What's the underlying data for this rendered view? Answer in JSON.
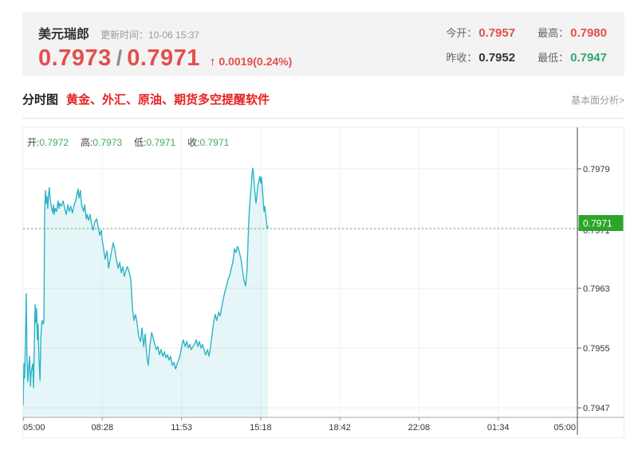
{
  "header": {
    "symbol": "美元瑞郎",
    "update_label": "更新时间：",
    "update_time": "10-06 15:37",
    "bid": "0.7973",
    "slash": "/",
    "ask": "0.7971",
    "arrow": "↑",
    "change": "0.0019(0.24%)",
    "stats": [
      {
        "label": "今开：",
        "value": "0.7957",
        "tone": "red"
      },
      {
        "label": "最高：",
        "value": "0.7980",
        "tone": "red"
      },
      {
        "label": "昨收：",
        "value": "0.7952",
        "tone": "dark"
      },
      {
        "label": "最低：",
        "value": "0.7947",
        "tone": "green"
      }
    ]
  },
  "toolbar": {
    "tab": "分时图",
    "promo": "黄金、外汇、原油、期货多空提醒软件",
    "link": "基本面分析>"
  },
  "colors": {
    "up_red": "#e34f4c",
    "down_green": "#2fa86e",
    "line_teal": "#2eb3c7",
    "area_fill": "rgba(46,179,199,0.12)",
    "dash_green": "#3faf3f",
    "badge_green": "#2ba52b",
    "panel_bg": "#f3f3f3"
  },
  "chart_data": {
    "type": "line",
    "title": "美元瑞郎分时图",
    "legend": [
      {
        "label": "开:",
        "value": "0.7972"
      },
      {
        "label": "高:",
        "value": "0.7973"
      },
      {
        "label": "低:",
        "value": "0.7971"
      },
      {
        "label": "收:",
        "value": "0.7971"
      }
    ],
    "x_ticks": [
      "05:00",
      "08:28",
      "11:53",
      "15:18",
      "18:42",
      "22:08",
      "01:34",
      "05:00"
    ],
    "y_ticks": [
      "0.7979",
      "0.7971",
      "0.7963",
      "0.7955",
      "0.7947"
    ],
    "ylim": [
      0.79457,
      0.79845
    ],
    "x_total_minutes": 1440,
    "grid": true,
    "legend_position": "top-left",
    "current_price": "0.7971",
    "current_price_value": 0.7971,
    "series": [
      {
        "name": "price",
        "points": [
          [
            0,
            0.79473
          ],
          [
            2,
            0.79529
          ],
          [
            4,
            0.7951
          ],
          [
            6,
            0.79561
          ],
          [
            8,
            0.79623
          ],
          [
            10,
            0.79541
          ],
          [
            12,
            0.79505
          ],
          [
            15,
            0.79527
          ],
          [
            17,
            0.79539
          ],
          [
            19,
            0.79499
          ],
          [
            21,
            0.79518
          ],
          [
            25,
            0.79529
          ],
          [
            27,
            0.79497
          ],
          [
            29,
            0.7955
          ],
          [
            31,
            0.79608
          ],
          [
            33,
            0.79584
          ],
          [
            35,
            0.79603
          ],
          [
            37,
            0.79561
          ],
          [
            39,
            0.79582
          ],
          [
            41,
            0.79537
          ],
          [
            44,
            0.79507
          ],
          [
            46,
            0.79561
          ],
          [
            48,
            0.79584
          ],
          [
            50,
            0.79587
          ],
          [
            52,
            0.79582
          ],
          [
            54,
            0.79586
          ],
          [
            56,
            0.79731
          ],
          [
            58,
            0.79761
          ],
          [
            60,
            0.79744
          ],
          [
            62,
            0.79753
          ],
          [
            64,
            0.79737
          ],
          [
            66,
            0.79755
          ],
          [
            68,
            0.79765
          ],
          [
            70,
            0.79751
          ],
          [
            73,
            0.7974
          ],
          [
            77,
            0.79731
          ],
          [
            79,
            0.79742
          ],
          [
            81,
            0.79729
          ],
          [
            83,
            0.79737
          ],
          [
            87,
            0.79733
          ],
          [
            89,
            0.79742
          ],
          [
            91,
            0.79747
          ],
          [
            93,
            0.79737
          ],
          [
            95,
            0.79744
          ],
          [
            99,
            0.7974
          ],
          [
            104,
            0.79747
          ],
          [
            108,
            0.79737
          ],
          [
            112,
            0.79729
          ],
          [
            116,
            0.79742
          ],
          [
            120,
            0.79733
          ],
          [
            124,
            0.7974
          ],
          [
            128,
            0.79731
          ],
          [
            133,
            0.79742
          ],
          [
            137,
            0.79748
          ],
          [
            141,
            0.79759
          ],
          [
            143,
            0.79763
          ],
          [
            145,
            0.79751
          ],
          [
            149,
            0.79761
          ],
          [
            151,
            0.79746
          ],
          [
            153,
            0.7974
          ],
          [
            157,
            0.79733
          ],
          [
            160,
            0.79742
          ],
          [
            162,
            0.79731
          ],
          [
            164,
            0.79723
          ],
          [
            166,
            0.79729
          ],
          [
            170,
            0.79721
          ],
          [
            174,
            0.79729
          ],
          [
            178,
            0.79715
          ],
          [
            182,
            0.79708
          ],
          [
            186,
            0.79719
          ],
          [
            191,
            0.79723
          ],
          [
            195,
            0.79712
          ],
          [
            199,
            0.79701
          ],
          [
            203,
            0.79708
          ],
          [
            205,
            0.79697
          ],
          [
            209,
            0.79683
          ],
          [
            213,
            0.79669
          ],
          [
            218,
            0.7968
          ],
          [
            222,
            0.79657
          ],
          [
            226,
            0.79669
          ],
          [
            230,
            0.7968
          ],
          [
            234,
            0.79691
          ],
          [
            238,
            0.79683
          ],
          [
            242,
            0.79669
          ],
          [
            247,
            0.79657
          ],
          [
            251,
            0.79665
          ],
          [
            255,
            0.79651
          ],
          [
            259,
            0.79659
          ],
          [
            263,
            0.79646
          ],
          [
            267,
            0.79654
          ],
          [
            271,
            0.79659
          ],
          [
            276,
            0.79651
          ],
          [
            280,
            0.79641
          ],
          [
            284,
            0.79603
          ],
          [
            288,
            0.79587
          ],
          [
            292,
            0.79595
          ],
          [
            296,
            0.79584
          ],
          [
            300,
            0.79566
          ],
          [
            305,
            0.79559
          ],
          [
            309,
            0.79577
          ],
          [
            313,
            0.79552
          ],
          [
            317,
            0.79569
          ],
          [
            321,
            0.79541
          ],
          [
            325,
            0.79527
          ],
          [
            329,
            0.79552
          ],
          [
            334,
            0.79571
          ],
          [
            338,
            0.79563
          ],
          [
            342,
            0.79555
          ],
          [
            346,
            0.79548
          ],
          [
            350,
            0.79552
          ],
          [
            354,
            0.79541
          ],
          [
            358,
            0.79548
          ],
          [
            363,
            0.79539
          ],
          [
            367,
            0.79545
          ],
          [
            371,
            0.79537
          ],
          [
            375,
            0.79541
          ],
          [
            379,
            0.79534
          ],
          [
            383,
            0.79539
          ],
          [
            387,
            0.79527
          ],
          [
            392,
            0.79531
          ],
          [
            396,
            0.79522
          ],
          [
            400,
            0.79529
          ],
          [
            404,
            0.79534
          ],
          [
            408,
            0.79541
          ],
          [
            412,
            0.79552
          ],
          [
            416,
            0.79561
          ],
          [
            421,
            0.79552
          ],
          [
            425,
            0.79559
          ],
          [
            429,
            0.7955
          ],
          [
            433,
            0.79555
          ],
          [
            437,
            0.79548
          ],
          [
            441,
            0.79552
          ],
          [
            445,
            0.79555
          ],
          [
            450,
            0.79561
          ],
          [
            454,
            0.79552
          ],
          [
            458,
            0.79559
          ],
          [
            462,
            0.7955
          ],
          [
            466,
            0.79555
          ],
          [
            470,
            0.79548
          ],
          [
            474,
            0.79541
          ],
          [
            479,
            0.79548
          ],
          [
            483,
            0.79539
          ],
          [
            487,
            0.79552
          ],
          [
            491,
            0.79569
          ],
          [
            495,
            0.79584
          ],
          [
            499,
            0.79595
          ],
          [
            503,
            0.79587
          ],
          [
            508,
            0.79598
          ],
          [
            512,
            0.79593
          ],
          [
            516,
            0.79605
          ],
          [
            520,
            0.79616
          ],
          [
            524,
            0.79625
          ],
          [
            528,
            0.79633
          ],
          [
            532,
            0.79641
          ],
          [
            537,
            0.79648
          ],
          [
            541,
            0.79657
          ],
          [
            545,
            0.79665
          ],
          [
            549,
            0.79683
          ],
          [
            553,
            0.79678
          ],
          [
            557,
            0.79686
          ],
          [
            561,
            0.7968
          ],
          [
            566,
            0.79669
          ],
          [
            570,
            0.79654
          ],
          [
            574,
            0.79641
          ],
          [
            578,
            0.79633
          ],
          [
            582,
            0.79657
          ],
          [
            584,
            0.79689
          ],
          [
            586,
            0.79715
          ],
          [
            588,
            0.79737
          ],
          [
            590,
            0.79753
          ],
          [
            593,
            0.79769
          ],
          [
            595,
            0.79785
          ],
          [
            597,
            0.79791
          ],
          [
            599,
            0.79779
          ],
          [
            601,
            0.79765
          ],
          [
            603,
            0.79755
          ],
          [
            605,
            0.79744
          ],
          [
            607,
            0.79753
          ],
          [
            609,
            0.79763
          ],
          [
            611,
            0.79771
          ],
          [
            613,
            0.79775
          ],
          [
            615,
            0.7978
          ],
          [
            617,
            0.79771
          ],
          [
            619,
            0.79779
          ],
          [
            622,
            0.79761
          ],
          [
            624,
            0.79744
          ],
          [
            626,
            0.79733
          ],
          [
            628,
            0.7974
          ],
          [
            630,
            0.79729
          ],
          [
            632,
            0.79721
          ],
          [
            634,
            0.7971
          ],
          [
            637,
            0.79713
          ]
        ]
      }
    ]
  }
}
